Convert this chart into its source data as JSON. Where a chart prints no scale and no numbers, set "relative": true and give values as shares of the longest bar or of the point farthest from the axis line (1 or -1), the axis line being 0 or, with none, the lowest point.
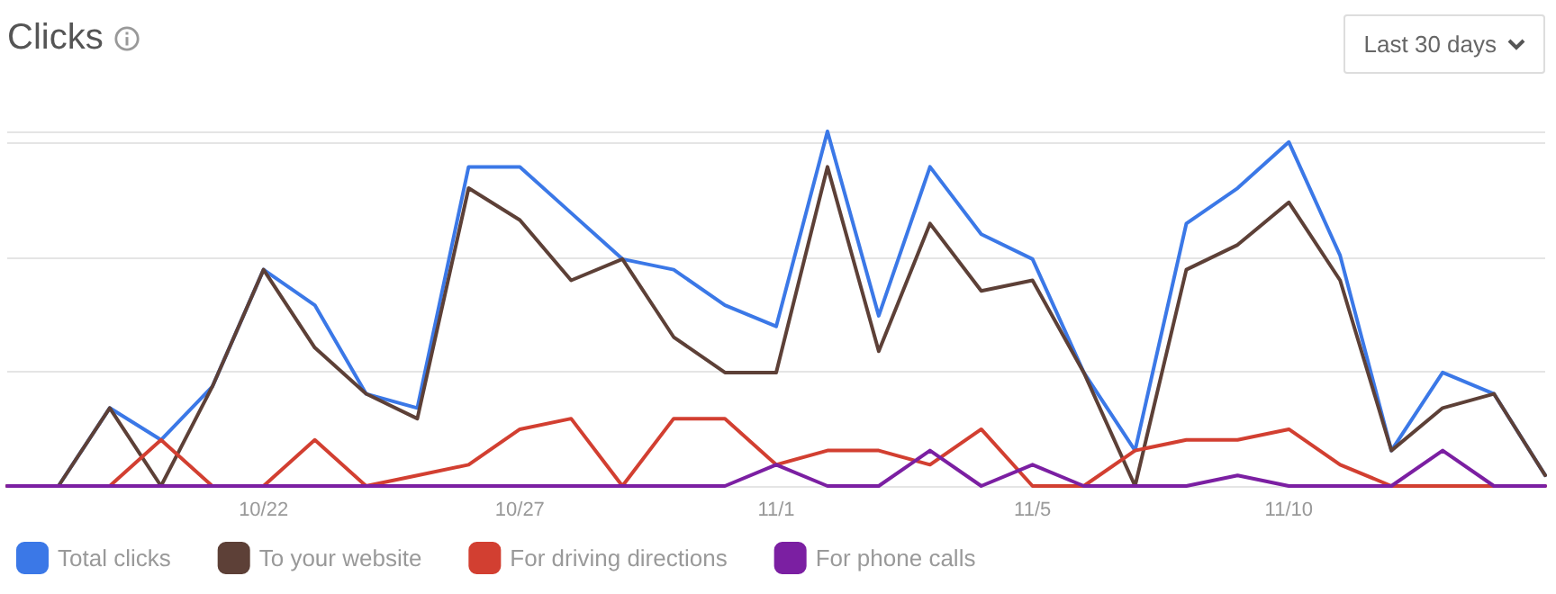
{
  "chart_data": {
    "type": "line",
    "title": "Clicks",
    "annotations": [
      "Last 30 days"
    ],
    "relative": true,
    "grid": "y",
    "legend": "bottom",
    "marker": "none",
    "line_style": "solid",
    "categories": [
      null,
      null,
      null,
      null,
      null,
      "10/22",
      null,
      null,
      null,
      null,
      "10/27",
      null,
      null,
      null,
      null,
      "11/1",
      null,
      null,
      null,
      null,
      "11/5",
      null,
      null,
      null,
      null,
      "11/10",
      null,
      null,
      null,
      null,
      null
    ],
    "series": [
      {
        "name": "Total clicks",
        "color": "#3b78e7",
        "values": [
          0,
          0,
          0.22,
          0.13,
          0.28,
          0.61,
          0.51,
          0.26,
          0.22,
          0.9,
          0.9,
          0.77,
          0.64,
          0.61,
          0.51,
          0.45,
          1,
          0.48,
          0.9,
          0.71,
          0.64,
          0.32,
          0.1,
          0.74,
          0.84,
          0.97,
          0.65,
          0.1,
          0.32,
          0.26,
          0.03
        ]
      },
      {
        "name": "To your website",
        "color": "#5d4037",
        "values": [
          0,
          0,
          0.22,
          0,
          0.28,
          0.61,
          0.39,
          0.26,
          0.19,
          0.84,
          0.75,
          0.58,
          0.64,
          0.42,
          0.32,
          0.32,
          0.9,
          0.38,
          0.74,
          0.55,
          0.58,
          0.32,
          0,
          0.61,
          0.68,
          0.8,
          0.58,
          0.1,
          0.22,
          0.26,
          0.03
        ]
      },
      {
        "name": "For driving directions",
        "color": "#d23f31",
        "values": [
          0,
          0,
          0,
          0.13,
          0,
          0,
          0.13,
          0,
          0.03,
          0.06,
          0.16,
          0.19,
          0,
          0.19,
          0.19,
          0.06,
          0.1,
          0.1,
          0.06,
          0.16,
          0,
          0,
          0.1,
          0.13,
          0.13,
          0.16,
          0.06,
          0,
          0,
          0,
          0
        ]
      },
      {
        "name": "For phone calls",
        "color": "#7b1fa2",
        "values": [
          0,
          0,
          0,
          0,
          0,
          0,
          0,
          0,
          0,
          0,
          0,
          0,
          0,
          0,
          0,
          0.06,
          0,
          0,
          0.1,
          0,
          0.06,
          0,
          0,
          0,
          0.03,
          0,
          0,
          0,
          0.1,
          0,
          0
        ]
      }
    ]
  }
}
